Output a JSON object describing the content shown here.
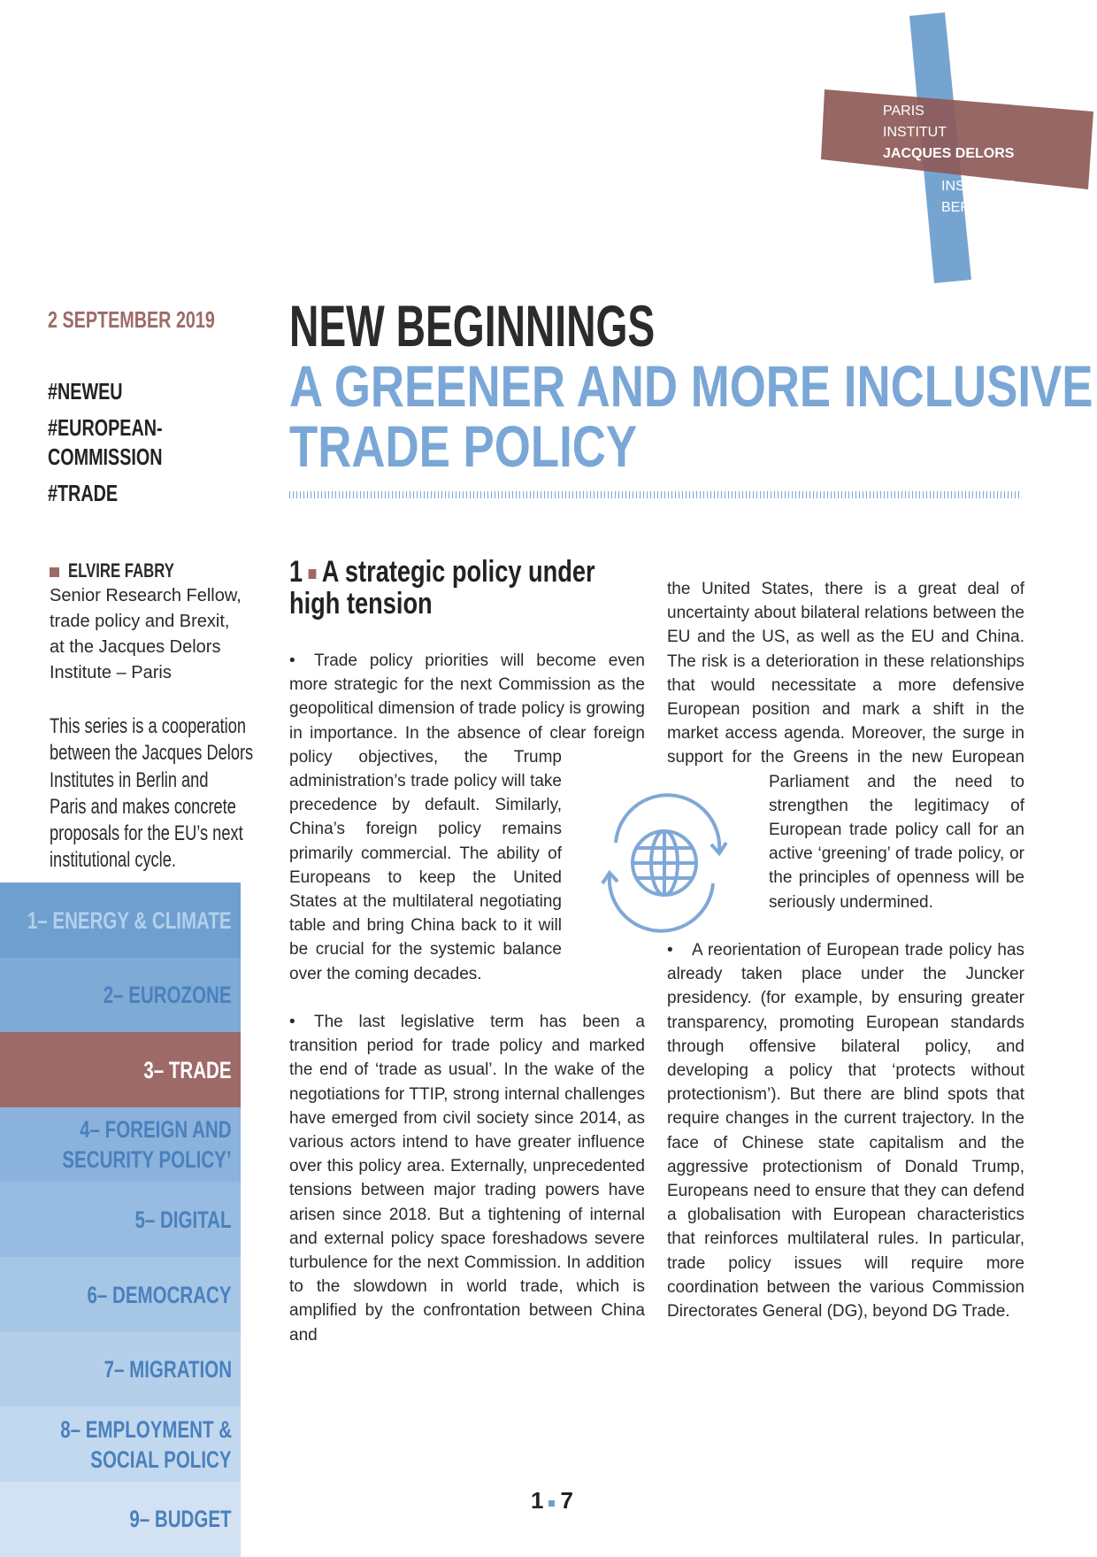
{
  "logo": {
    "paris_lines": [
      "PARIS",
      "INSTITUT",
      "JACQUES DELORS"
    ],
    "berlin_lines": [
      "INSTITUTE",
      "BERLIN"
    ]
  },
  "date": "2 SEPTEMBER 2019",
  "hashtags": [
    "#NEWEU",
    "#EUROPEAN-",
    "COMMISSION",
    "#TRADE"
  ],
  "title": {
    "line1": "NEW BEGINNINGS",
    "line2": "A GREENER AND MORE INCLUSIVE",
    "line3": "TRADE POLICY"
  },
  "author": {
    "name": "ELVIRE FABRY",
    "bio": [
      "Senior Research Fellow,",
      "trade policy and Brexit,",
      "at the Jacques Delors",
      "Institute – Paris"
    ]
  },
  "series_note": [
    "This series is a cooperation",
    "between the Jacques Delors",
    "Institutes in Berlin and",
    "Paris and makes concrete",
    "proposals for the EU’s next",
    "institutional cycle."
  ],
  "nav": [
    [
      "1– ENERGY & CLIMATE"
    ],
    [
      "2– EUROZONE"
    ],
    [
      "3– TRADE"
    ],
    [
      "4– FOREIGN AND",
      "SECURITY POLICY’"
    ],
    [
      "5– DIGITAL"
    ],
    [
      "6– DEMOCRACY"
    ],
    [
      "7– MIGRATION"
    ],
    [
      "8– EMPLOYMENT &",
      "SOCIAL POLICY"
    ],
    [
      "9– BUDGET"
    ]
  ],
  "section": {
    "number": "1",
    "heading_lines": [
      "A strategic policy under",
      "high tension"
    ]
  },
  "body": {
    "column1": [
      "Trade policy priorities will become even more strategic for the next Commission as the geopolitical dimension of trade policy is growing in importance. In the absence of clear foreign policy objectives, the Trump administration’s trade policy will take precedence by default. Similarly, China’s foreign policy remains primarily commercial. The ability of Europeans to keep the United States at the multilateral negotiating table and bring China back to it will be crucial for the systemic balance over the coming decades.",
      "The last legislative term has been a transition period for trade policy and marked the end of ‘trade as usual’. In the wake of the negotiations for TTIP, strong internal challenges have emerged from civil society since 2014, as various actors intend to have greater influence over this policy area. Externally, unprecedented tensions between major trading powers have arisen since 2018. But a tightening of internal and external policy space foreshadows severe turbulence for the next Commission. In addition to the slowdown in world trade, which is amplified by the confrontation between China and"
    ],
    "column2": [
      "the United States, there is a great deal of uncertainty about bilateral relations between the EU and the US, as well as the EU and China. The risk is a deterioration in these relationships that would necessitate a more defensive European position and mark a shift in the market access agenda. Moreover, the surge in support for the Greens in the new European Parliament and the need to strengthen the legitimacy of European trade policy call for an active ‘greening’ of trade policy, or the principles of openness will be seriously undermined.",
      "A reorientation of European trade policy has already taken place under the Juncker presidency. (for example, by ensuring greater transparency, promoting European standards through offensive bilateral policy, and developing a policy that ‘protects without protectionism’). But there are blind spots that require changes in the current trajectory. In the face of Chinese state capitalism and the aggressive protectionism of Donald Trump, Europeans need to ensure that they can defend a globalisation with European characteristics that reinforces multilateral rules. In particular, trade policy issues will require more coordination between the various Commission Directorates General (DG), beyond DG Trade."
    ]
  },
  "page": {
    "current": "1",
    "total": "7"
  }
}
